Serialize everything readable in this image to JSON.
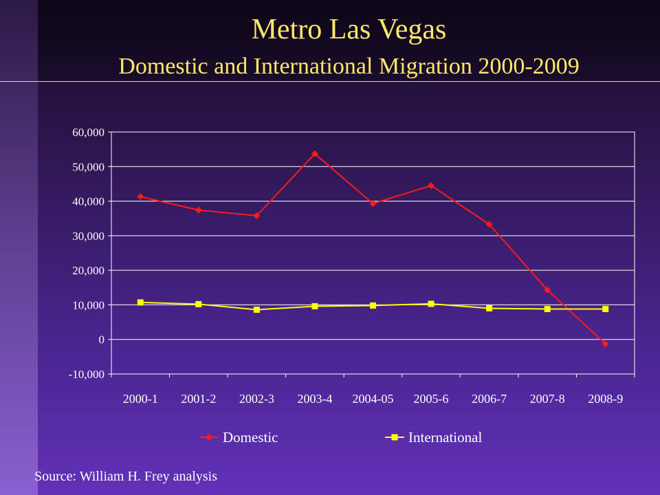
{
  "slide": {
    "title": "Metro Las Vegas",
    "subtitle": "Domestic and International Migration  2000-2009",
    "source": "Source: William H. Frey analysis"
  },
  "chart_data": {
    "type": "line",
    "categories": [
      "2000-1",
      "2001-2",
      "2002-3",
      "2003-4",
      "2004-05",
      "2005-6",
      "2006-7",
      "2007-8",
      "2008-9"
    ],
    "series": [
      {
        "name": "Domestic",
        "color": "#ff1a1a",
        "marker": "diamond",
        "values": [
          41300,
          37400,
          35800,
          53700,
          39300,
          44500,
          33300,
          14300,
          -1300
        ]
      },
      {
        "name": "International",
        "color": "#ffff00",
        "marker": "square",
        "values": [
          10700,
          10200,
          8600,
          9600,
          9800,
          10300,
          9000,
          8800,
          8800
        ]
      }
    ],
    "ylim": [
      -10000,
      60000
    ],
    "y_ticks": [
      "-10,000",
      "0",
      "10,000",
      "20,000",
      "30,000",
      "40,000",
      "50,000",
      "60,000"
    ],
    "grid": true,
    "legend": "bottom"
  }
}
